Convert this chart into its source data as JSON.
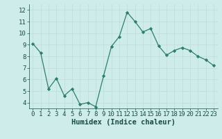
{
  "x": [
    0,
    1,
    2,
    3,
    4,
    5,
    6,
    7,
    8,
    9,
    10,
    11,
    12,
    13,
    14,
    15,
    16,
    17,
    18,
    19,
    20,
    21,
    22,
    23
  ],
  "y": [
    9.1,
    8.3,
    5.2,
    6.1,
    4.6,
    5.2,
    3.85,
    4.0,
    3.65,
    6.3,
    8.85,
    9.7,
    11.8,
    11.0,
    10.1,
    10.4,
    8.9,
    8.1,
    8.5,
    8.75,
    8.5,
    8.0,
    7.7,
    7.2
  ],
  "line_color": "#2e7d6e",
  "marker": "D",
  "marker_size": 2.2,
  "bg_color": "#ceecea",
  "grid_color": "#c0dbd8",
  "tick_color": "#1a4a44",
  "label_color": "#1a4a44",
  "xlabel": "Humidex (Indice chaleur)",
  "ylim": [
    3.5,
    12.5
  ],
  "xlim": [
    -0.5,
    23.5
  ],
  "yticks": [
    4,
    5,
    6,
    7,
    8,
    9,
    10,
    11,
    12
  ],
  "xticks": [
    0,
    1,
    2,
    3,
    4,
    5,
    6,
    7,
    8,
    9,
    10,
    11,
    12,
    13,
    14,
    15,
    16,
    17,
    18,
    19,
    20,
    21,
    22,
    23
  ],
  "font_size": 6.5,
  "xlabel_size": 7.5,
  "line_width": 0.9
}
